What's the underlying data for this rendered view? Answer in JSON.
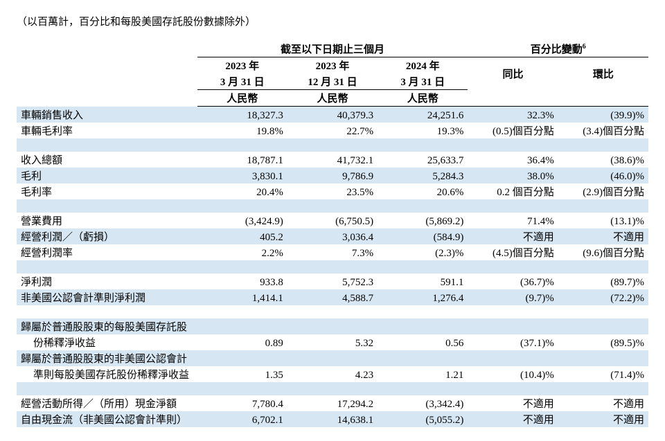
{
  "caption": "（以百萬計，百分比和每股美國存託股份數據除外）",
  "headers": {
    "period_spanner": "截至以下日期止三個月",
    "change_spanner": "百分比變動",
    "change_sup": "6",
    "col1_y": "2023 年",
    "col1_d": "3 月 31 日",
    "col2_y": "2023 年",
    "col2_d": "12 月 31 日",
    "col3_y": "2024 年",
    "col3_d": "3 月 31 日",
    "yoy": "同比",
    "qoq": "環比",
    "currency": "人民幣"
  },
  "rows": {
    "r1": {
      "label": "車輛銷售收入",
      "c1": "18,327.3",
      "c2": "40,379.3",
      "c3": "24,251.6",
      "c4": "32.3%",
      "c5": "(39.9)%"
    },
    "r2": {
      "label": "車輛毛利率",
      "c1": "19.8%",
      "c2": "22.7%",
      "c3": "19.3%",
      "c4": "(0.5)個百分點",
      "c5": "(3.4)個百分點"
    },
    "r3": {
      "label": "收入總額",
      "c1": "18,787.1",
      "c2": "41,732.1",
      "c3": "25,633.7",
      "c4": "36.4%",
      "c5": "(38.6)%"
    },
    "r4": {
      "label": "毛利",
      "c1": "3,830.1",
      "c2": "9,786.9",
      "c3": "5,284.3",
      "c4": "38.0%",
      "c5": "(46.0)%"
    },
    "r5": {
      "label": "毛利率",
      "c1": "20.4%",
      "c2": "23.5%",
      "c3": "20.6%",
      "c4": "0.2 個百分點",
      "c5": "(2.9)個百分點"
    },
    "r6": {
      "label": "營業費用",
      "c1": "(3,424.9)",
      "c2": "(6,750.5)",
      "c3": "(5,869.2)",
      "c4": "71.4%",
      "c5": "(13.1)%"
    },
    "r7": {
      "label": "經營利潤／（虧損）",
      "c1": "405.2",
      "c2": "3,036.4",
      "c3": "(584.9)",
      "c4": "不適用",
      "c5": "不適用"
    },
    "r8": {
      "label": "經營利潤率",
      "c1": "2.2%",
      "c2": "7.3%",
      "c3": "(2.3)%",
      "c4": "(4.5)個百分點",
      "c5": "(9.6)個百分點"
    },
    "r9": {
      "label": "淨利潤",
      "c1": "933.8",
      "c2": "5,752.3",
      "c3": "591.1",
      "c4": "(36.7)%",
      "c5": "(89.7)%"
    },
    "r10": {
      "label": "非美國公認會計準則淨利潤",
      "c1": "1,414.1",
      "c2": "4,588.7",
      "c3": "1,276.4",
      "c4": "(9.7)%",
      "c5": "(72.2)%"
    },
    "r11a": {
      "label": "歸屬於普通股股東的每股美國存託股"
    },
    "r11b": {
      "label": "份稀釋淨收益",
      "c1": "0.89",
      "c2": "5.32",
      "c3": "0.56",
      "c4": "(37.1)%",
      "c5": "(89.5)%"
    },
    "r12a": {
      "label": "歸屬於普通股股東的非美國公認會計"
    },
    "r12b": {
      "label": "準則每股美國存託股份稀釋淨收益",
      "c1": "1.35",
      "c2": "4.23",
      "c3": "1.21",
      "c4": "(10.4)%",
      "c5": "(71.4)%"
    },
    "r13": {
      "label": "經營活動所得／（所用）現金淨額",
      "c1": "7,780.4",
      "c2": "17,294.2",
      "c3": "(3,342.4)",
      "c4": "不適用",
      "c5": "不適用"
    },
    "r14": {
      "label": "自由現金流（非美國公認會計準則）",
      "c1": "6,702.1",
      "c2": "14,638.1",
      "c3": "(5,055.2)",
      "c4": "不適用",
      "c5": "不適用"
    }
  },
  "colors": {
    "stripe": "#d6e6f2",
    "text": "#000000",
    "background": "#ffffff"
  }
}
